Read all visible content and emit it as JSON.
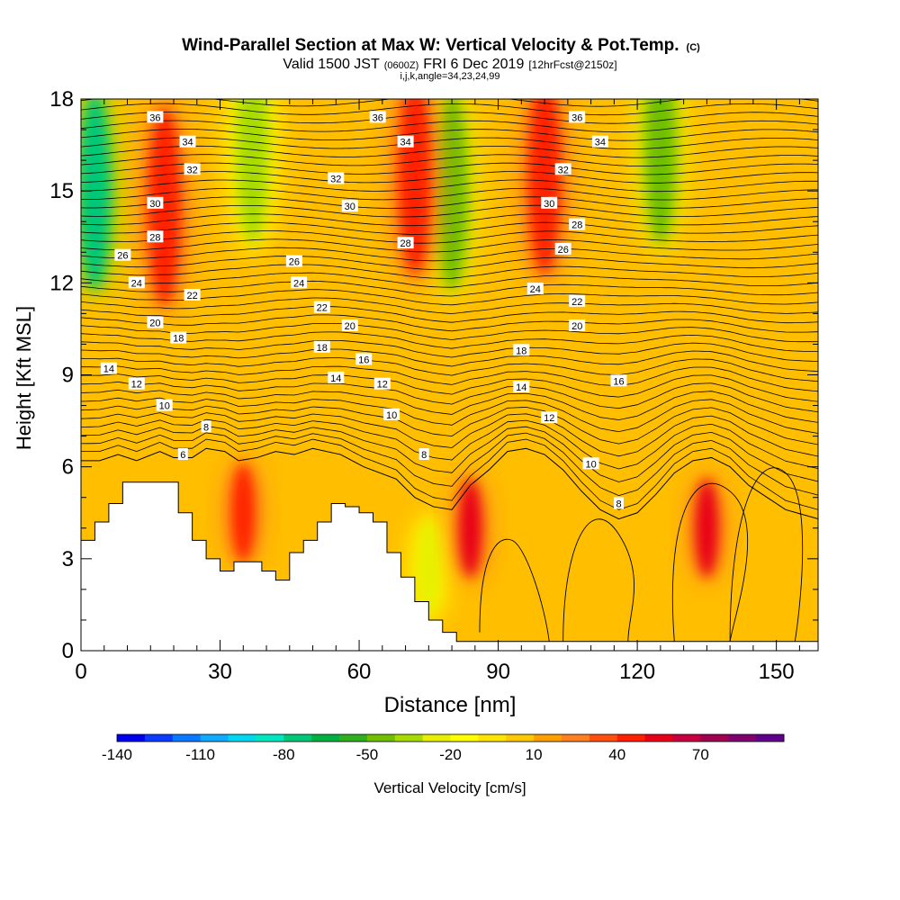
{
  "header": {
    "title": "Wind-Parallel Section at Max W: Vertical Velocity & Pot.Temp.",
    "title_mark": "(C)",
    "valid_prefix": "Valid 1500 JST",
    "valid_utc": "(0600Z)",
    "valid_date": "FRI 6 Dec 2019",
    "forecast": "[12hrFcst@2150z]",
    "ijk": "i,j,k,angle=34,23,24,99"
  },
  "chart_data": {
    "type": "heatmap",
    "xlabel": "Distance [nm]",
    "ylabel": "Height [Kft MSL]",
    "xlim": [
      0,
      159
    ],
    "ylim": [
      0,
      18
    ],
    "x_ticks": [
      0,
      30,
      60,
      90,
      120,
      150
    ],
    "y_ticks": [
      0,
      3,
      6,
      9,
      12,
      15,
      18
    ],
    "colorbar": {
      "label": "Vertical Velocity [cm/s]",
      "tick_labels": [
        "-140",
        "-110",
        "-80",
        "-50",
        "-20",
        "10",
        "40",
        "70"
      ],
      "levels": [
        -140,
        -130,
        -120,
        -110,
        -100,
        -90,
        -80,
        -70,
        -60,
        -50,
        -40,
        -30,
        -20,
        -10,
        0,
        10,
        20,
        30,
        40,
        50,
        60,
        70,
        80,
        90,
        100
      ],
      "colors": [
        "#0000f0",
        "#0a3cff",
        "#0a78ff",
        "#10aaff",
        "#00d8f0",
        "#00e8c0",
        "#00c878",
        "#00b040",
        "#30b020",
        "#70c000",
        "#a8dc00",
        "#e6f000",
        "#ffff00",
        "#ffe400",
        "#ffc800",
        "#ffa000",
        "#ff8020",
        "#ff5010",
        "#ff2000",
        "#e80018",
        "#c80040",
        "#a00050",
        "#800070",
        "#60008c"
      ]
    },
    "terrain_kft": [
      [
        0,
        3.6
      ],
      [
        3,
        3.6
      ],
      [
        3,
        4.2
      ],
      [
        6,
        4.2
      ],
      [
        6,
        4.8
      ],
      [
        9,
        4.8
      ],
      [
        9,
        5.5
      ],
      [
        21,
        5.5
      ],
      [
        21,
        4.5
      ],
      [
        24,
        4.5
      ],
      [
        24,
        3.6
      ],
      [
        27,
        3.6
      ],
      [
        27,
        3.0
      ],
      [
        30,
        3.0
      ],
      [
        30,
        2.6
      ],
      [
        33,
        2.6
      ],
      [
        33,
        2.9
      ],
      [
        39,
        2.9
      ],
      [
        39,
        2.6
      ],
      [
        42,
        2.6
      ],
      [
        42,
        2.3
      ],
      [
        45,
        2.3
      ],
      [
        45,
        3.2
      ],
      [
        48,
        3.2
      ],
      [
        48,
        3.6
      ],
      [
        51,
        3.6
      ],
      [
        51,
        4.2
      ],
      [
        54,
        4.2
      ],
      [
        54,
        4.8
      ],
      [
        57,
        4.8
      ],
      [
        57,
        4.7
      ],
      [
        60,
        4.7
      ],
      [
        60,
        4.5
      ],
      [
        63,
        4.5
      ],
      [
        63,
        4.2
      ],
      [
        66,
        4.2
      ],
      [
        66,
        3.2
      ],
      [
        69,
        3.2
      ],
      [
        69,
        2.4
      ],
      [
        72,
        2.4
      ],
      [
        72,
        1.6
      ],
      [
        75,
        1.6
      ],
      [
        75,
        1.0
      ],
      [
        78,
        1.0
      ],
      [
        78,
        0.6
      ],
      [
        81,
        0.6
      ],
      [
        81,
        0.3
      ],
      [
        159,
        0.3
      ]
    ],
    "boundary_layer_kft": [
      [
        0,
        6.2
      ],
      [
        4,
        6.2
      ],
      [
        8,
        6.4
      ],
      [
        12,
        6.2
      ],
      [
        17,
        6.5
      ],
      [
        20,
        6.3
      ],
      [
        24,
        6.3
      ],
      [
        27,
        6.6
      ],
      [
        31,
        6.5
      ],
      [
        34,
        6.2
      ],
      [
        38,
        6.3
      ],
      [
        42,
        6.5
      ],
      [
        46,
        6.4
      ],
      [
        50,
        6.6
      ],
      [
        56,
        6.4
      ],
      [
        61,
        6.0
      ],
      [
        68,
        5.6
      ],
      [
        72,
        5.0
      ],
      [
        76,
        4.7
      ],
      [
        80,
        4.6
      ],
      [
        84,
        5.4
      ],
      [
        88,
        5.9
      ],
      [
        92,
        6.5
      ],
      [
        96,
        6.6
      ],
      [
        100,
        6.4
      ],
      [
        104,
        5.9
      ],
      [
        108,
        5.2
      ],
      [
        112,
        4.6
      ],
      [
        116,
        4.3
      ],
      [
        120,
        4.5
      ],
      [
        124,
        5.1
      ],
      [
        128,
        5.8
      ],
      [
        132,
        6.2
      ],
      [
        136,
        6.3
      ],
      [
        140,
        6.0
      ],
      [
        144,
        5.4
      ],
      [
        148,
        5.0
      ],
      [
        152,
        4.6
      ],
      [
        159,
        4.3
      ]
    ],
    "updrafts": [
      {
        "x": 18,
        "y": 14.5,
        "value": 45
      },
      {
        "x": 35,
        "y": 4.5,
        "value": 45
      },
      {
        "x": 72,
        "y": 15.5,
        "value": 45
      },
      {
        "x": 84,
        "y": 4.0,
        "value": 55
      },
      {
        "x": 100,
        "y": 15.5,
        "value": 45
      },
      {
        "x": 135,
        "y": 4.0,
        "value": 50
      }
    ],
    "downdrafts": [
      {
        "x": 3,
        "y": 15.0,
        "value": -80
      },
      {
        "x": 37,
        "y": 16.5,
        "value": -35
      },
      {
        "x": 80,
        "y": 15.0,
        "value": -45
      },
      {
        "x": 125,
        "y": 16.5,
        "value": -45
      },
      {
        "x": 75,
        "y": 2.7,
        "value": -30
      }
    ],
    "theta_labels": [
      {
        "x": 16,
        "y": 17.4,
        "text": "36"
      },
      {
        "x": 23,
        "y": 16.6,
        "text": "34"
      },
      {
        "x": 24,
        "y": 15.7,
        "text": "32"
      },
      {
        "x": 16,
        "y": 14.6,
        "text": "30"
      },
      {
        "x": 16,
        "y": 13.5,
        "text": "28"
      },
      {
        "x": 9,
        "y": 12.9,
        "text": "26"
      },
      {
        "x": 12,
        "y": 12.0,
        "text": "24"
      },
      {
        "x": 24,
        "y": 11.6,
        "text": "22"
      },
      {
        "x": 16,
        "y": 10.7,
        "text": "20"
      },
      {
        "x": 21,
        "y": 10.2,
        "text": "18"
      },
      {
        "x": 6,
        "y": 9.2,
        "text": "14"
      },
      {
        "x": 12,
        "y": 8.7,
        "text": "12"
      },
      {
        "x": 18,
        "y": 8.0,
        "text": "10"
      },
      {
        "x": 27,
        "y": 7.3,
        "text": "8"
      },
      {
        "x": 22,
        "y": 6.4,
        "text": "6"
      },
      {
        "x": 64,
        "y": 17.4,
        "text": "36"
      },
      {
        "x": 70,
        "y": 16.6,
        "text": "34"
      },
      {
        "x": 55,
        "y": 15.4,
        "text": "32"
      },
      {
        "x": 58,
        "y": 14.5,
        "text": "30"
      },
      {
        "x": 70,
        "y": 13.3,
        "text": "28"
      },
      {
        "x": 46,
        "y": 12.7,
        "text": "26"
      },
      {
        "x": 47,
        "y": 12.0,
        "text": "24"
      },
      {
        "x": 52,
        "y": 11.2,
        "text": "22"
      },
      {
        "x": 58,
        "y": 10.6,
        "text": "20"
      },
      {
        "x": 52,
        "y": 9.9,
        "text": "18"
      },
      {
        "x": 61,
        "y": 9.5,
        "text": "16"
      },
      {
        "x": 55,
        "y": 8.9,
        "text": "14"
      },
      {
        "x": 65,
        "y": 8.7,
        "text": "12"
      },
      {
        "x": 67,
        "y": 7.7,
        "text": "10"
      },
      {
        "x": 74,
        "y": 6.4,
        "text": "8"
      },
      {
        "x": 107,
        "y": 17.4,
        "text": "36"
      },
      {
        "x": 112,
        "y": 16.6,
        "text": "34"
      },
      {
        "x": 104,
        "y": 15.7,
        "text": "32"
      },
      {
        "x": 101,
        "y": 14.6,
        "text": "30"
      },
      {
        "x": 107,
        "y": 13.9,
        "text": "28"
      },
      {
        "x": 104,
        "y": 13.1,
        "text": "26"
      },
      {
        "x": 98,
        "y": 11.8,
        "text": "24"
      },
      {
        "x": 107,
        "y": 11.4,
        "text": "22"
      },
      {
        "x": 107,
        "y": 10.6,
        "text": "20"
      },
      {
        "x": 95,
        "y": 9.8,
        "text": "18"
      },
      {
        "x": 116,
        "y": 8.8,
        "text": "16"
      },
      {
        "x": 95,
        "y": 8.6,
        "text": "14"
      },
      {
        "x": 101,
        "y": 7.6,
        "text": "12"
      },
      {
        "x": 110,
        "y": 6.1,
        "text": "10"
      },
      {
        "x": 116,
        "y": 4.8,
        "text": "8"
      }
    ]
  }
}
